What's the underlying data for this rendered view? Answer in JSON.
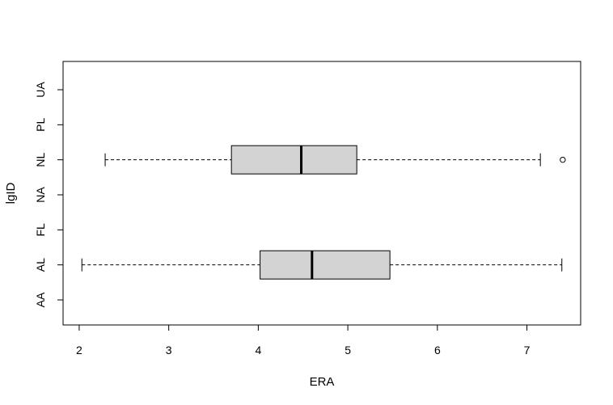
{
  "chart_data": {
    "type": "boxplot",
    "orientation": "horizontal",
    "xlabel": "ERA",
    "ylabel": "lgID",
    "xlim": [
      1.82,
      7.6
    ],
    "x_ticks": [
      2,
      3,
      4,
      5,
      6,
      7
    ],
    "categories": [
      "AA",
      "AL",
      "FL",
      "NA",
      "NL",
      "PL",
      "UA"
    ],
    "boxes": [
      {
        "category": "AL",
        "whisker_low": 2.03,
        "q1": 4.02,
        "median": 4.6,
        "q3": 5.47,
        "whisker_high": 7.39,
        "outliers": []
      },
      {
        "category": "NL",
        "whisker_low": 2.29,
        "q1": 3.7,
        "median": 4.48,
        "q3": 5.1,
        "whisker_high": 7.15,
        "outliers": [
          7.4
        ]
      }
    ],
    "box_fill": "#d3d3d3",
    "frame": true,
    "grid": false
  }
}
